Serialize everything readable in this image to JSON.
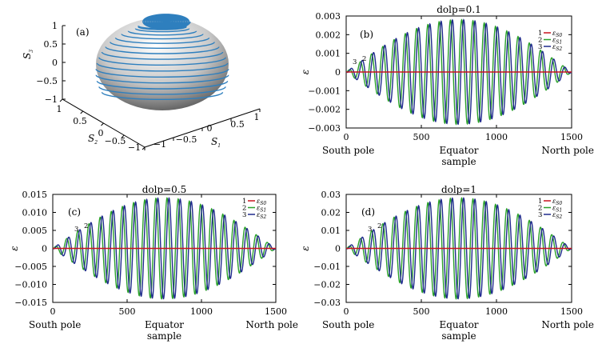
{
  "colors": {
    "series1": "#c8141e",
    "series2": "#2aa02a",
    "series3": "#1f2a8c",
    "sphere": "#2e7fbe"
  },
  "chart_data": [
    {
      "type": "surface3d",
      "panel_label": "(a)",
      "title": "",
      "axes": {
        "x": {
          "label": "S",
          "label_sub": "1",
          "ticks": [
            "1",
            "0.5",
            "0",
            "−0.5",
            "−1"
          ],
          "range": [
            -1,
            1
          ]
        },
        "y": {
          "label": "S",
          "label_sub": "2",
          "ticks": [
            "1",
            "0.5",
            "0",
            "−0.5",
            "−1"
          ],
          "range": [
            -1,
            1
          ]
        },
        "z": {
          "label": "S",
          "label_sub": "3",
          "ticks": [
            "1",
            "0.5",
            "0",
            "−0.5",
            "−1"
          ],
          "range": [
            -1,
            1
          ]
        }
      },
      "spiral_turns": 20
    },
    {
      "type": "line",
      "panel_label": "(b)",
      "title": "dolp=0.1",
      "ylabel": "ε",
      "xlabel": "sample",
      "x_ticks": [
        "0",
        "500",
        "1000",
        "1500"
      ],
      "y_ticks": [
        "0.003",
        "0.002",
        "0.001",
        "0",
        "−0.001",
        "−0.002",
        "−0.003"
      ],
      "xlim": [
        0,
        1500
      ],
      "ylim": [
        -0.003,
        0.003
      ],
      "x_annotations": {
        "left": "South pole",
        "center": "Equator",
        "right": "North pole"
      },
      "amplitude": 0.0028,
      "cycles": 20,
      "series": [
        {
          "num": "1",
          "sym": "ε",
          "sub": "S0"
        },
        {
          "num": "2",
          "sym": "ε",
          "sub": "S1"
        },
        {
          "num": "3",
          "sym": "ε",
          "sub": "S2"
        }
      ],
      "curve_labels": [
        "3",
        "2"
      ]
    },
    {
      "type": "line",
      "panel_label": "(c)",
      "title": "dolp=0.5",
      "ylabel": "ε",
      "xlabel": "sample",
      "x_ticks": [
        "0",
        "500",
        "1000",
        "1500"
      ],
      "y_ticks": [
        "0.015",
        "0.010",
        "0.005",
        "0",
        "−0.005",
        "−0.010",
        "−0.015"
      ],
      "xlim": [
        0,
        1500
      ],
      "ylim": [
        -0.015,
        0.015
      ],
      "x_annotations": {
        "left": "South pole",
        "center": "Equator",
        "right": "North pole"
      },
      "amplitude": 0.014,
      "cycles": 20,
      "series": [
        {
          "num": "1",
          "sym": "ε",
          "sub": "S0"
        },
        {
          "num": "2",
          "sym": "ε",
          "sub": "S1"
        },
        {
          "num": "3",
          "sym": "ε",
          "sub": "S2"
        }
      ],
      "curve_labels": [
        "3",
        "2"
      ]
    },
    {
      "type": "line",
      "panel_label": "(d)",
      "title": "dolp=1",
      "ylabel": "ε",
      "xlabel": "sample",
      "x_ticks": [
        "0",
        "500",
        "1000",
        "1500"
      ],
      "y_ticks": [
        "0.03",
        "0.02",
        "0.01",
        "0",
        "−0.01",
        "−0.02",
        "−0.03"
      ],
      "xlim": [
        0,
        1500
      ],
      "ylim": [
        -0.03,
        0.03
      ],
      "x_annotations": {
        "left": "South pole",
        "center": "Equator",
        "right": "North pole"
      },
      "amplitude": 0.028,
      "cycles": 20,
      "series": [
        {
          "num": "1",
          "sym": "ε",
          "sub": "S0"
        },
        {
          "num": "2",
          "sym": "ε",
          "sub": "S1"
        },
        {
          "num": "3",
          "sym": "ε",
          "sub": "S2"
        }
      ],
      "curve_labels": [
        "3",
        "2"
      ]
    }
  ]
}
